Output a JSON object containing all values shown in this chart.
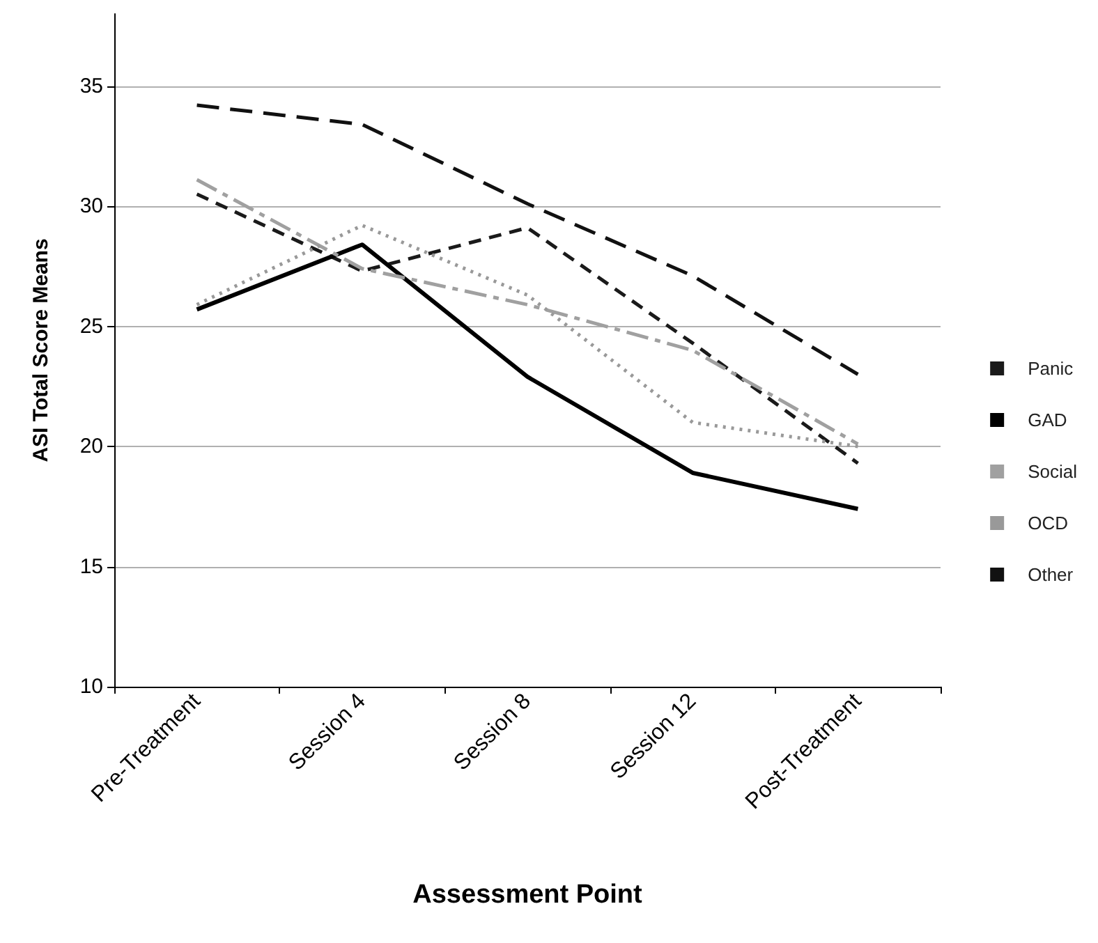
{
  "chart_data": {
    "type": "line",
    "xlabel": "Assessment Point",
    "ylabel": "ASI Total Score Means",
    "categories": [
      "Pre-Treatment",
      "Session 4",
      "Session 8",
      "Session 12",
      "Post-Treatment"
    ],
    "ylim": [
      10,
      38
    ],
    "yticks": [
      10,
      15,
      20,
      25,
      30,
      35
    ],
    "grid": "y",
    "legend": "right",
    "marker": "none",
    "series": [
      {
        "name": "Panic",
        "color": "#1a1a1a",
        "line_style": "dashed",
        "values": [
          30.5,
          27.3,
          29.1,
          24.3,
          19.3
        ]
      },
      {
        "name": "GAD",
        "color": "#000000",
        "line_style": "solid",
        "values": [
          25.7,
          28.4,
          22.9,
          18.9,
          17.4
        ]
      },
      {
        "name": "Social",
        "color": "#a0a0a0",
        "line_style": "dashed",
        "values": [
          31.1,
          27.4,
          25.9,
          24.0,
          20.1
        ]
      },
      {
        "name": "OCD",
        "color": "#999999",
        "line_style": "dotted",
        "values": [
          25.9,
          29.2,
          26.3,
          21.0,
          20.0
        ]
      },
      {
        "name": "Other",
        "color": "#111111",
        "line_style": "dashed",
        "values": [
          34.2,
          33.4,
          30.1,
          27.1,
          23.0
        ]
      }
    ]
  }
}
